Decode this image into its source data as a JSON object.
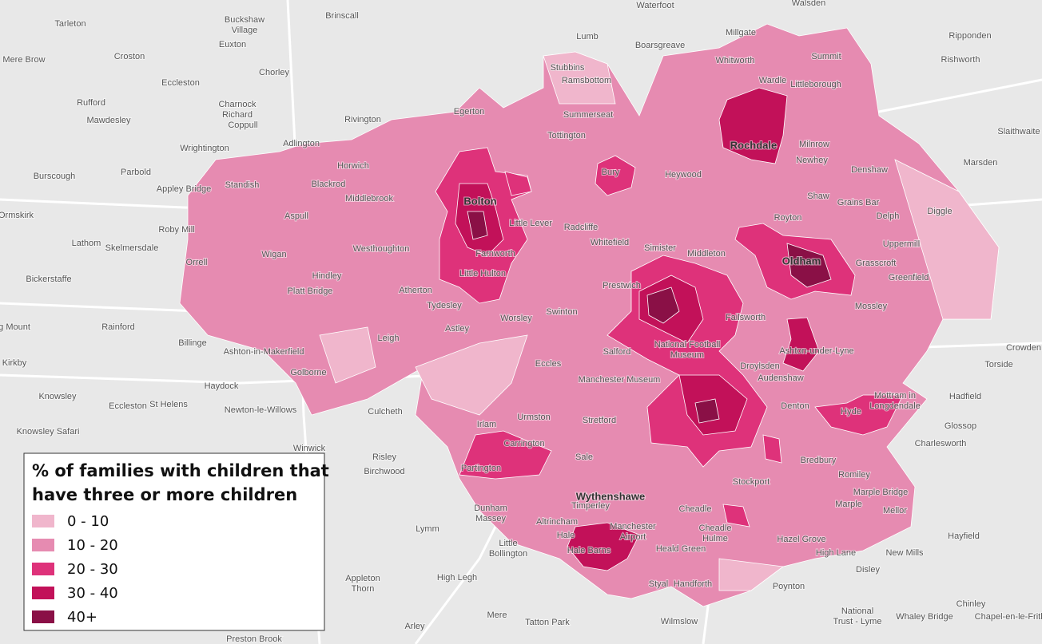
{
  "places": [
    "Tarleton",
    [
      "Buckshaw",
      "Village"
    ],
    "Brinscall",
    "Waterfoot",
    "Walsden",
    "Mere Brow",
    "Croston",
    "Lumb",
    "Boarsgreave",
    "Millgate",
    "Ripponden",
    "Euxton",
    "Chorley",
    "Stubbins",
    "Ramsbottom",
    "Whitworth",
    "Summit",
    "Rishworth",
    "Eccleston",
    "Wardle",
    "Littleborough",
    "Rufford",
    [
      "Charnock",
      "Richard"
    ],
    "Mawdesley",
    "Rivington",
    "Egerton",
    "Summerseat",
    "Coppull",
    "Adlington",
    "Tottington",
    "Rochdale",
    "Milnrow",
    "Slaithwaite",
    "Wrightington",
    "Horwich",
    "Newhey",
    "Marsden",
    "Burscough",
    "Parbold",
    "Bury",
    "Heywood",
    "Denshaw",
    "Appley Bridge",
    "Standish",
    "Blackrod",
    "Middlebrook",
    "Bolton",
    "Shaw",
    "Grains Bar",
    "Ormskirk",
    "Aspull",
    "Little Lever",
    "Royton",
    "Delph",
    "Diggle",
    "Roby Mill",
    "Radcliffe",
    "Lathom",
    "Skelmersdale",
    "Westhoughton",
    "Whitefield",
    "Simister",
    "Uppermill",
    "Wigan",
    "Farnworth",
    "Middleton",
    "Oldham",
    "Grasscroft",
    "Orrell",
    "Bickerstaffe",
    "Hindley",
    "Little Hulton",
    "Prestwich",
    "Greenfield",
    "Platt Bridge",
    "Atherton",
    "Tydesley",
    "Mossley",
    "Swinton",
    "Astley",
    "Worsley",
    "Failsworth",
    "Rainford",
    "ng Mount",
    "Billinge",
    "Leigh",
    [
      "National Football",
      "Museum"
    ],
    "Salford",
    "Droylsden",
    "Ashton-under-Lyne",
    "Crowden",
    "Ashton-in-Makerfield",
    "Kirkby",
    "Audenshaw",
    "Torside",
    "Eccles",
    "Golborne",
    "Manchester Museum",
    "Haydock",
    "Hadfield",
    [
      "Mottram in",
      "Longdendale"
    ],
    "Knowsley",
    "Eccleston",
    "St Helens",
    "Newton-le-Willows",
    "Culcheth",
    "Urmston",
    "Stretford",
    "Denton",
    "Hyde",
    "Glossop",
    "Knowsley Safari",
    "Irlam",
    "Charlesworth",
    "Winwick",
    "Carrington",
    "Risley",
    "Sale",
    "Bredbury",
    "Birchwood",
    "Partington",
    "Stockport",
    "Wythenshawe",
    "Romiley",
    "Marple Bridge",
    "Marple",
    "Timperley",
    [
      "Dunham",
      "Massey"
    ],
    "Cheadle",
    "Mellor",
    "Lymm",
    "Altrincham",
    "Hale",
    [
      "Manchester",
      "Airport"
    ],
    [
      "Cheadle",
      "Hulme"
    ],
    "Hazel Grove",
    "High Lane",
    "Hayfield",
    [
      "Little",
      "Bollington"
    ],
    "Hale Barns",
    "Heald Green",
    "New Mills",
    [
      "Appleton",
      "Thorn"
    ],
    "High Legh",
    "Styal",
    "Handforth",
    "Poynton",
    "Disley",
    [
      "National",
      "Trust - Lyme"
    ],
    "Chinley",
    "Whaley Bridge",
    "Chapel-en-le-Frith",
    "Arley",
    "Mere",
    "Tatton Park",
    "Wilmslow",
    "Preston Brook"
  ],
  "legend": {
    "title": [
      "% of families with children that",
      "have three or more children"
    ],
    "items": [
      {
        "label": "0 - 10",
        "color": "#f0b6cc"
      },
      {
        "label": "10 - 20",
        "color": "#e68bb1"
      },
      {
        "label": "20 - 30",
        "color": "#de327a"
      },
      {
        "label": "30 - 40",
        "color": "#c21159"
      },
      {
        "label": "40+",
        "color": "#8a1046"
      }
    ]
  }
}
